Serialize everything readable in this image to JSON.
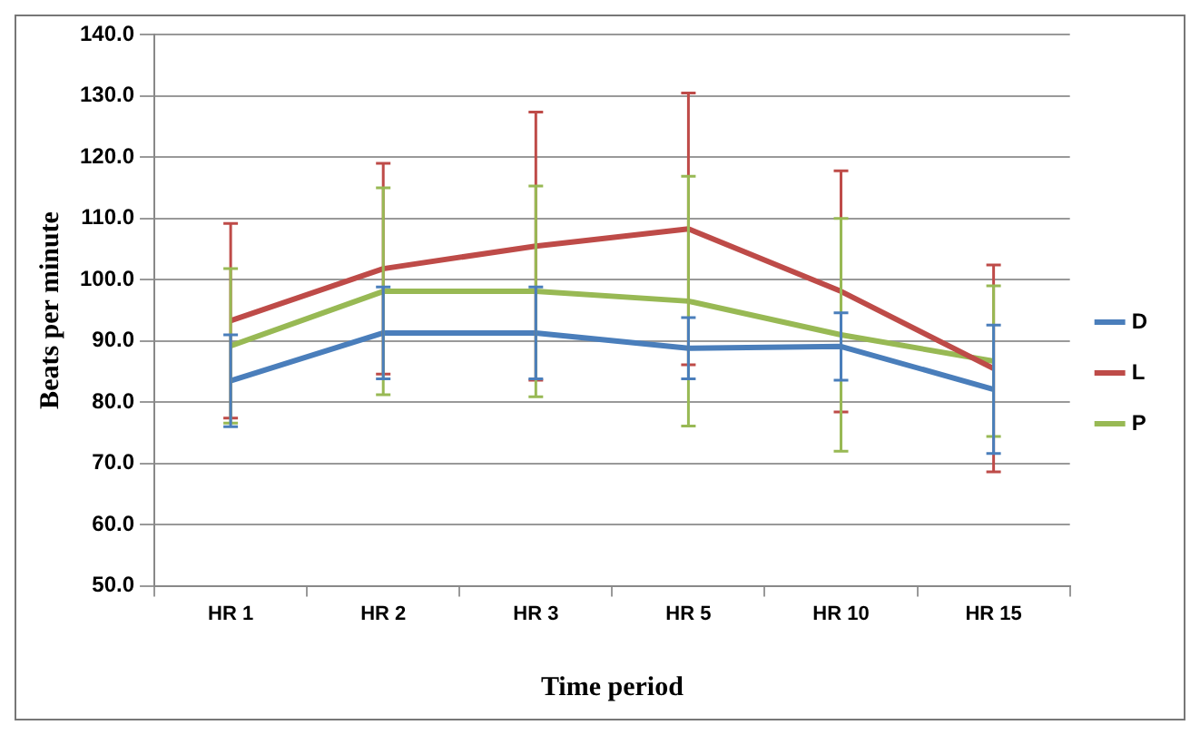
{
  "chart_data": {
    "type": "line",
    "xlabel": "Time period",
    "ylabel": "Beats per minute",
    "categories": [
      "HR 1",
      "HR 2",
      "HR 3",
      "HR 5",
      "HR 10",
      "HR 15"
    ],
    "series": [
      {
        "name": "D",
        "color": "#4a7ebb",
        "values": [
          83.5,
          91.3,
          91.3,
          88.8,
          89.1,
          82.1
        ],
        "errors": [
          7.5,
          7.5,
          7.5,
          5,
          5.5,
          10.5
        ]
      },
      {
        "name": "L",
        "color": "#be4b48",
        "values": [
          93.3,
          101.8,
          105.5,
          108.3,
          98.1,
          85.5
        ],
        "errors": [
          15.9,
          17.2,
          21.9,
          22.2,
          19.7,
          16.9
        ]
      },
      {
        "name": "P",
        "color": "#98b954",
        "values": [
          89.2,
          98.1,
          98.1,
          96.5,
          91.0,
          86.7
        ],
        "errors": [
          12.6,
          16.9,
          17.2,
          20.4,
          19.0,
          12.3
        ]
      }
    ],
    "ylim": [
      50,
      140
    ],
    "yticks": [
      {
        "value": 50,
        "label": "50.0"
      },
      {
        "value": 60,
        "label": "60.0"
      },
      {
        "value": 70,
        "label": "70.0"
      },
      {
        "value": 80,
        "label": "80.0"
      },
      {
        "value": 90,
        "label": "90.0"
      },
      {
        "value": 100,
        "label": "100.0"
      },
      {
        "value": 110,
        "label": "110.0"
      },
      {
        "value": 120,
        "label": "120.0"
      },
      {
        "value": 130,
        "label": "130.0"
      },
      {
        "value": 140,
        "label": "140.0"
      }
    ],
    "grid": "y",
    "legend": "right",
    "marker": "none",
    "line_style": "solid"
  }
}
